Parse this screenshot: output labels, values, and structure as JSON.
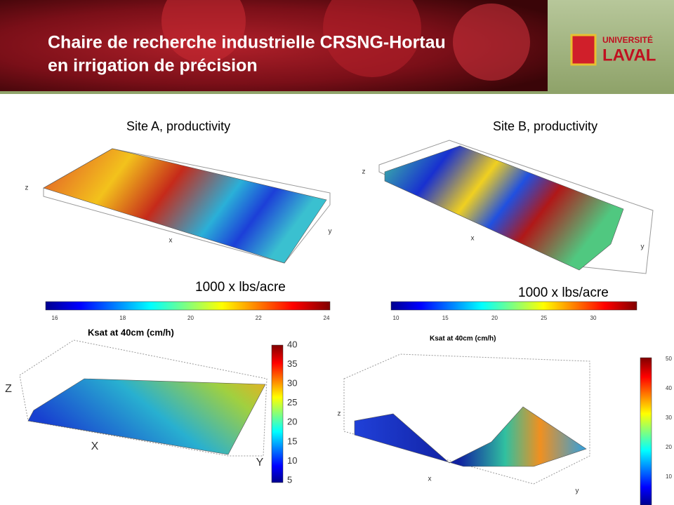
{
  "header": {
    "title_lines": [
      "Chaire de recherche industrielle CRSNG-Hortau",
      "en irrigation de précision"
    ],
    "logo": [
      "UNIVERSITÉ",
      "LAVAL"
    ]
  },
  "panels": [
    {
      "title": "Site A, productivity",
      "axes": [
        "z",
        "x",
        "y"
      ],
      "unit": "1000 x lbs/acre",
      "colorbar_ticks": [
        16,
        18,
        20,
        22,
        24
      ]
    },
    {
      "title": "Site B, productivity",
      "axes": [
        "z",
        "x",
        "y"
      ],
      "unit": "1000 x lbs/acre",
      "colorbar_ticks": [
        10,
        15,
        20,
        25,
        30
      ]
    },
    {
      "title": "Ksat at 40cm (cm/h)",
      "axes": [
        "Z",
        "X",
        "Y"
      ],
      "colorbar_ticks": [
        5,
        10,
        15,
        20,
        25,
        30,
        35,
        40
      ]
    },
    {
      "title": "Ksat at 40cm (cm/h)",
      "axes": [
        "z",
        "x",
        "y"
      ],
      "colorbar_ticks": [
        10,
        20,
        30,
        40,
        50
      ]
    }
  ]
}
